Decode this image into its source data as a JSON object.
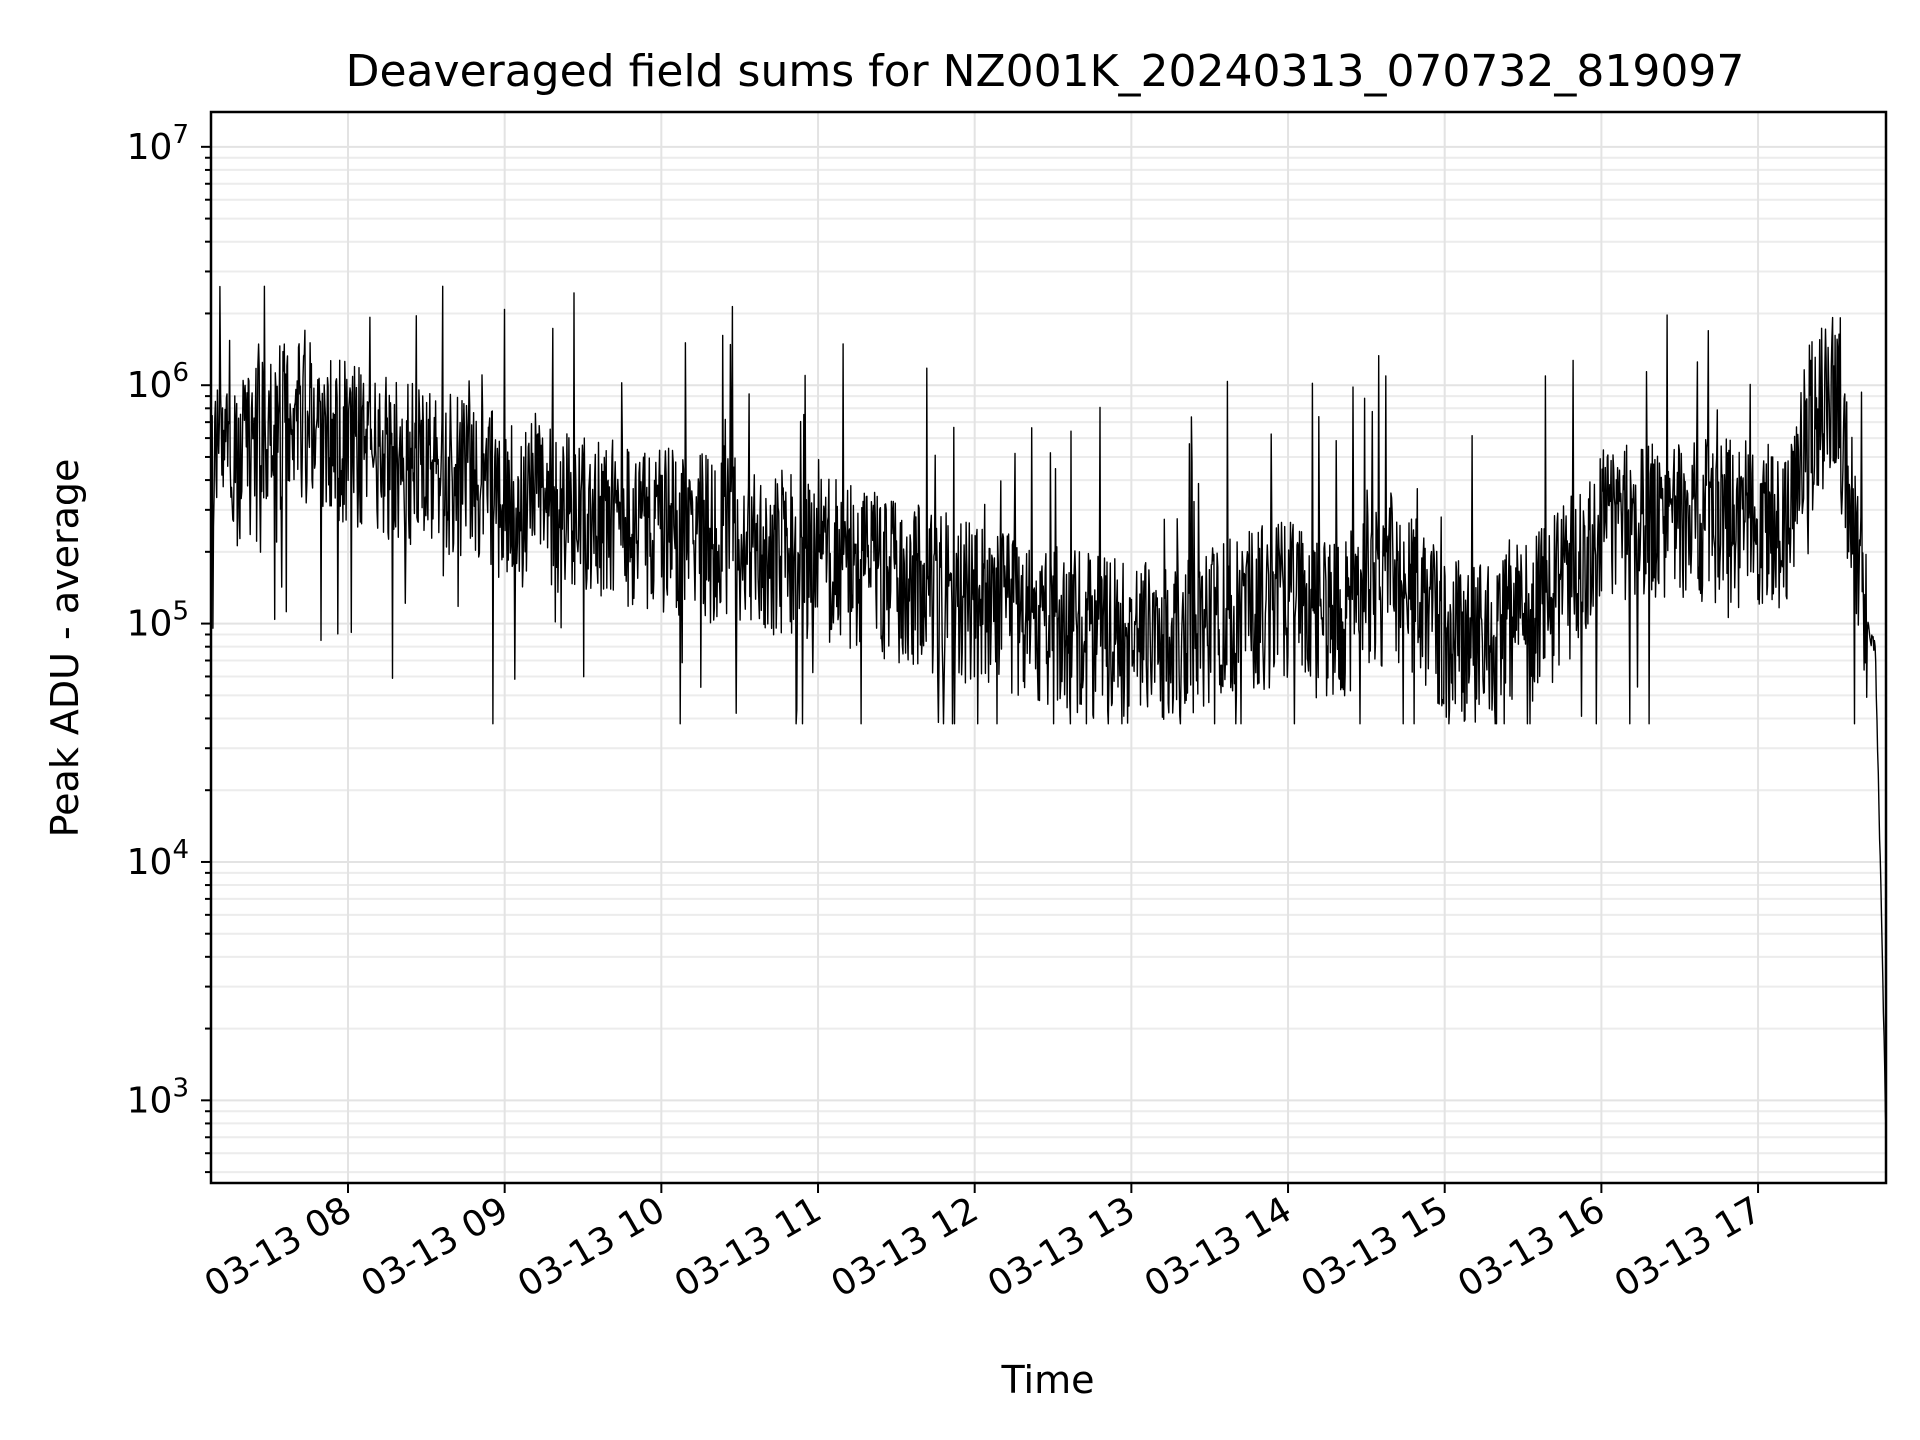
{
  "chart_data": {
    "type": "line",
    "title": "Deaveraged field sums for NZ001K_20240313_070732_819097",
    "xlabel": "Time",
    "ylabel": "Peak ADU - average",
    "yscale": "log",
    "ylim": [
      450,
      14000000
    ],
    "xlim": [
      "2024-03-13T07:07:32",
      "2024-03-13T17:49:00"
    ],
    "grid": true,
    "legend": "none",
    "line_color": "#000000",
    "x_ticks": [
      {
        "value": "2024-03-13T08:00:00",
        "label": "03-13 08"
      },
      {
        "value": "2024-03-13T09:00:00",
        "label": "03-13 09"
      },
      {
        "value": "2024-03-13T10:00:00",
        "label": "03-13 10"
      },
      {
        "value": "2024-03-13T11:00:00",
        "label": "03-13 11"
      },
      {
        "value": "2024-03-13T12:00:00",
        "label": "03-13 12"
      },
      {
        "value": "2024-03-13T13:00:00",
        "label": "03-13 13"
      },
      {
        "value": "2024-03-13T14:00:00",
        "label": "03-13 14"
      },
      {
        "value": "2024-03-13T15:00:00",
        "label": "03-13 15"
      },
      {
        "value": "2024-03-13T16:00:00",
        "label": "03-13 16"
      },
      {
        "value": "2024-03-13T17:00:00",
        "label": "03-13 17"
      }
    ],
    "y_ticks": [
      {
        "value": 1000,
        "base": "10",
        "exp": "3"
      },
      {
        "value": 10000,
        "base": "10",
        "exp": "4"
      },
      {
        "value": 100000,
        "base": "10",
        "exp": "5"
      },
      {
        "value": 1000000,
        "base": "10",
        "exp": "6"
      },
      {
        "value": 10000000,
        "base": "10",
        "exp": "7"
      }
    ],
    "series": [
      {
        "x": [
          "2024-03-13T07:08:00",
          "2024-03-13T07:20:00",
          "2024-03-13T07:30:00",
          "2024-03-13T07:45:00",
          "2024-03-13T08:00:00",
          "2024-03-13T08:20:00",
          "2024-03-13T08:40:00",
          "2024-03-13T09:00:00",
          "2024-03-13T09:30:00",
          "2024-03-13T10:00:00",
          "2024-03-13T10:30:00",
          "2024-03-13T11:00:00",
          "2024-03-13T11:30:00",
          "2024-03-13T12:00:00",
          "2024-03-13T12:30:00",
          "2024-03-13T13:00:00",
          "2024-03-13T13:20:00",
          "2024-03-13T13:40:00",
          "2024-03-13T14:00:00",
          "2024-03-13T14:20:00",
          "2024-03-13T14:40:00",
          "2024-03-13T15:00:00",
          "2024-03-13T15:20:00",
          "2024-03-13T15:40:00",
          "2024-03-13T16:00:00",
          "2024-03-13T16:30:00",
          "2024-03-13T17:00:00",
          "2024-03-13T17:10:00",
          "2024-03-13T17:20:00",
          "2024-03-13T17:30:00",
          "2024-03-13T17:37:00",
          "2024-03-13T17:42:00",
          "2024-03-13T17:45:00",
          "2024-03-13T17:47:00",
          "2024-03-13T17:49:00"
        ],
        "y": [
          450000,
          480000,
          650000,
          700000,
          560000,
          480000,
          420000,
          330000,
          280000,
          250000,
          220000,
          190000,
          150000,
          120000,
          95000,
          85000,
          80000,
          110000,
          120000,
          100000,
          160000,
          90000,
          80000,
          120000,
          240000,
          280000,
          260000,
          240000,
          700000,
          900000,
          250000,
          95000,
          75000,
          8000,
          700
        ]
      }
    ]
  }
}
